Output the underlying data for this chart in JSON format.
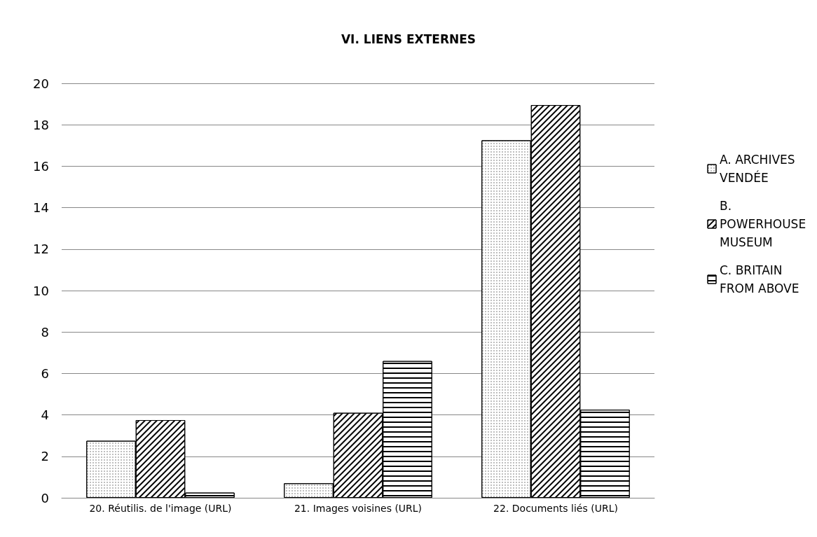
{
  "chart_data": {
    "type": "bar",
    "title": "VI. LIENS EXTERNES",
    "categories": [
      "20. Réutilis. de l'image (URL)",
      "21. Images voisines (URL)",
      "22. Documents liés (URL)"
    ],
    "series": [
      {
        "name": "A. ARCHIVES VENDÉE",
        "color": "#ffffff",
        "values": [
          2.75,
          0.7,
          17.25
        ]
      },
      {
        "name": "B. POWERHOUSE MUSEUM",
        "color": "#ffffff",
        "values": [
          3.75,
          4.1,
          18.95
        ]
      },
      {
        "name": "C. BRITAIN FROM ABOVE",
        "color": "#ffffff",
        "values": [
          0.25,
          6.6,
          4.25
        ]
      }
    ],
    "ylim": [
      0,
      20
    ],
    "yticks": [
      0,
      2,
      4,
      6,
      8,
      10,
      12,
      14,
      16,
      18,
      20
    ],
    "grid": "y",
    "legend": "right"
  }
}
